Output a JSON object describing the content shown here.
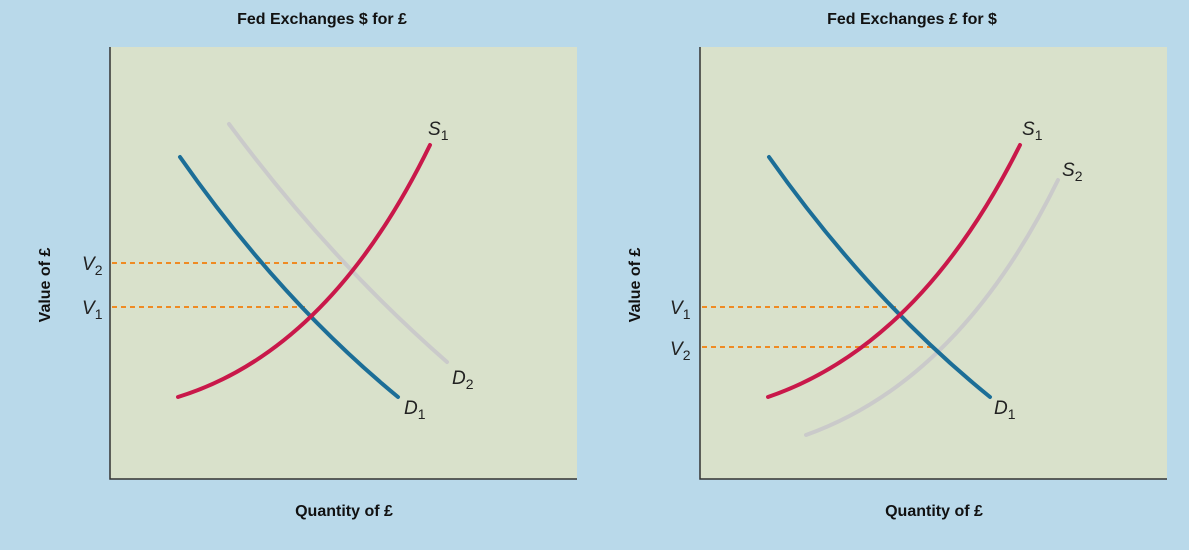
{
  "panels": [
    {
      "title": "Fed Exchanges $ for £",
      "y_label": "Value of £",
      "x_label": "Quantity of £",
      "labels": [
        {
          "letter": "V",
          "sub": "2"
        },
        {
          "letter": "V",
          "sub": "1"
        },
        {
          "letter": "S",
          "sub": "1"
        },
        {
          "letter": "D",
          "sub": "2"
        },
        {
          "letter": "D",
          "sub": "1"
        }
      ]
    },
    {
      "title": "Fed Exchanges £ for $",
      "y_label": "Value of £",
      "x_label": "Quantity of £",
      "labels": [
        {
          "letter": "V",
          "sub": "1"
        },
        {
          "letter": "V",
          "sub": "2"
        },
        {
          "letter": "S",
          "sub": "1"
        },
        {
          "letter": "S",
          "sub": "2"
        },
        {
          "letter": "D",
          "sub": "1"
        }
      ]
    }
  ]
}
